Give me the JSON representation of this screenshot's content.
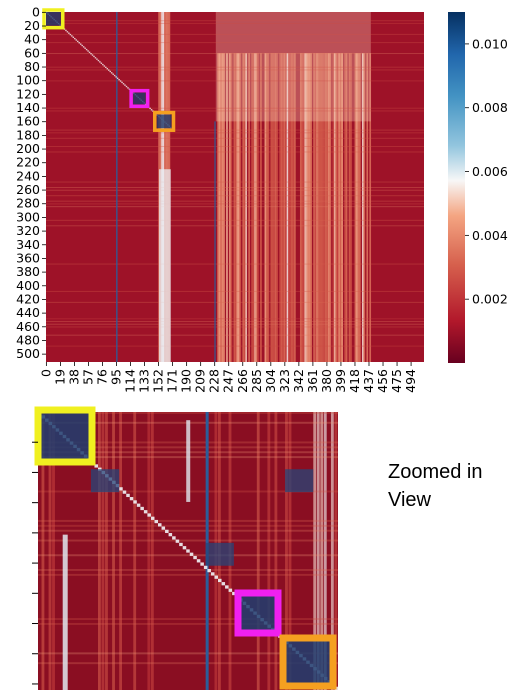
{
  "chart_data": [
    {
      "type": "heatmap",
      "title": "",
      "xlabel": "",
      "ylabel": "",
      "y_ticks": [
        "0",
        "20",
        "40",
        "60",
        "80",
        "100",
        "120",
        "140",
        "160",
        "180",
        "200",
        "220",
        "240",
        "260",
        "280",
        "300",
        "320",
        "340",
        "360",
        "380",
        "400",
        "420",
        "440",
        "460",
        "480",
        "500"
      ],
      "x_ticks": [
        "0",
        "19",
        "38",
        "57",
        "76",
        "95",
        "114",
        "133",
        "152",
        "171",
        "190",
        "209",
        "228",
        "247",
        "266",
        "285",
        "304",
        "323",
        "342",
        "361",
        "380",
        "399",
        "418",
        "437",
        "456",
        "475",
        "494"
      ],
      "colorbar": {
        "ticks": [
          "0.002",
          "0.004",
          "0.006",
          "0.008",
          "0.010"
        ],
        "tick_values": [
          0.002,
          0.004,
          0.006,
          0.008,
          0.01
        ],
        "range": [
          0.0,
          0.011
        ],
        "colormap": "RdBu (dark red = low, dark blue = high)"
      },
      "highlight_boxes": [
        {
          "color": "#f0f020",
          "rows": [
            0,
            20
          ],
          "cols": [
            0,
            20
          ]
        },
        {
          "color": "#f020f0",
          "rows": [
            118,
            135
          ],
          "cols": [
            118,
            135
          ]
        },
        {
          "color": "#f5a020",
          "rows": [
            150,
            170
          ],
          "cols": [
            150,
            170
          ]
        }
      ],
      "notable_features": [
        "Dark blue vertical line near column 95",
        "Bright white vertical band around columns 152-171",
        "Light/white vertical banding around columns 247-437"
      ]
    },
    {
      "type": "heatmap",
      "title": "",
      "caption_lines": [
        "Zoomed in",
        "View"
      ],
      "shows": "Zoomed region of the upper-left block (rows/cols approx. 0-170)",
      "highlight_boxes": [
        {
          "color": "#f0f020",
          "position": "top-left"
        },
        {
          "color": "#f020f0",
          "position": "lower-middle"
        },
        {
          "color": "#f5a020",
          "position": "bottom-right"
        }
      ]
    }
  ],
  "colors": {
    "dark_red": "#67001f",
    "red": "#b2182b",
    "white": "#f7f7f7",
    "blue": "#2166ac",
    "dark_blue": "#053061",
    "yellow_box": "#f0f020",
    "magenta_box": "#f020f0",
    "orange_box": "#f5a020"
  }
}
